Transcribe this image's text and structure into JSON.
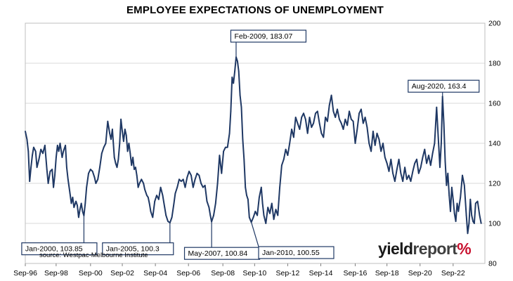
{
  "chart_data": {
    "type": "line",
    "title": "EMPLOYEE EXPECTATIONS OF UNEMPLOYMENT",
    "source": "source: Westpac-Melbourne Institute",
    "series": [
      {
        "name": "",
        "color": "#1f3864",
        "points": [
          [
            1996.67,
            146
          ],
          [
            1996.8,
            142
          ],
          [
            1996.9,
            136
          ],
          [
            1997.0,
            121
          ],
          [
            1997.1,
            128
          ],
          [
            1997.2,
            134
          ],
          [
            1997.3,
            138
          ],
          [
            1997.45,
            136
          ],
          [
            1997.55,
            128
          ],
          [
            1997.7,
            132
          ],
          [
            1997.85,
            137
          ],
          [
            1998.0,
            135
          ],
          [
            1998.15,
            139
          ],
          [
            1998.3,
            127
          ],
          [
            1998.4,
            120
          ],
          [
            1998.55,
            126
          ],
          [
            1998.7,
            127
          ],
          [
            1998.8,
            118
          ],
          [
            1998.9,
            124
          ],
          [
            1999.0,
            133
          ],
          [
            1999.1,
            139
          ],
          [
            1999.2,
            136
          ],
          [
            1999.3,
            140
          ],
          [
            1999.45,
            133
          ],
          [
            1999.55,
            136
          ],
          [
            1999.7,
            139
          ],
          [
            1999.8,
            128
          ],
          [
            1999.9,
            122
          ],
          [
            2000.05,
            115
          ],
          [
            2000.15,
            110
          ],
          [
            2000.25,
            113
          ],
          [
            2000.35,
            108
          ],
          [
            2000.5,
            111
          ],
          [
            2000.6,
            109
          ],
          [
            2000.7,
            103
          ],
          [
            2000.8,
            107
          ],
          [
            2000.9,
            110
          ],
          [
            2001.0,
            106
          ],
          [
            2001.1,
            103.85
          ],
          [
            2001.2,
            110
          ],
          [
            2001.3,
            118
          ],
          [
            2001.45,
            125
          ],
          [
            2001.6,
            127
          ],
          [
            2001.75,
            126
          ],
          [
            2001.9,
            123
          ],
          [
            2002.0,
            120
          ],
          [
            2002.15,
            122
          ],
          [
            2002.3,
            128
          ],
          [
            2002.45,
            135
          ],
          [
            2002.6,
            138
          ],
          [
            2002.75,
            140
          ],
          [
            2002.9,
            151
          ],
          [
            2003.05,
            145
          ],
          [
            2003.15,
            142
          ],
          [
            2003.25,
            147
          ],
          [
            2003.4,
            133
          ],
          [
            2003.5,
            130
          ],
          [
            2003.6,
            128
          ],
          [
            2003.7,
            132
          ],
          [
            2003.8,
            140
          ],
          [
            2003.9,
            152
          ],
          [
            2004.0,
            146
          ],
          [
            2004.1,
            141
          ],
          [
            2004.2,
            147
          ],
          [
            2004.3,
            144
          ],
          [
            2004.4,
            136
          ],
          [
            2004.5,
            140
          ],
          [
            2004.6,
            135
          ],
          [
            2004.7,
            129
          ],
          [
            2004.8,
            133
          ],
          [
            2004.9,
            127
          ],
          [
            2005.0,
            128
          ],
          [
            2005.1,
            124
          ],
          [
            2005.2,
            118
          ],
          [
            2005.3,
            120
          ],
          [
            2005.45,
            122
          ],
          [
            2005.6,
            120
          ],
          [
            2005.7,
            117
          ],
          [
            2005.85,
            114
          ],
          [
            2005.95,
            113
          ],
          [
            2006.05,
            110
          ],
          [
            2006.15,
            106
          ],
          [
            2006.3,
            103
          ],
          [
            2006.45,
            111
          ],
          [
            2006.6,
            114
          ],
          [
            2006.75,
            112
          ],
          [
            2006.9,
            118
          ],
          [
            2007.05,
            114
          ],
          [
            2007.2,
            108
          ],
          [
            2007.3,
            104
          ],
          [
            2007.45,
            101
          ],
          [
            2007.6,
            100.3
          ],
          [
            2007.75,
            103
          ],
          [
            2007.9,
            110
          ],
          [
            2008.0,
            115
          ],
          [
            2008.15,
            118
          ],
          [
            2008.3,
            122
          ],
          [
            2008.45,
            121
          ],
          [
            2008.6,
            122
          ],
          [
            2008.75,
            118
          ],
          [
            2008.9,
            123
          ],
          [
            2009.05,
            126
          ],
          [
            2009.2,
            124
          ],
          [
            2009.35,
            118
          ],
          [
            2009.5,
            122
          ],
          [
            2009.65,
            125
          ],
          [
            2009.8,
            124
          ],
          [
            2009.95,
            120
          ],
          [
            2010.1,
            118
          ],
          [
            2010.25,
            119
          ],
          [
            2010.4,
            111
          ],
          [
            2010.55,
            108
          ],
          [
            2010.65,
            104
          ],
          [
            2010.75,
            100.84
          ],
          [
            2010.9,
            104
          ],
          [
            2011.05,
            110
          ],
          [
            2011.2,
            120
          ],
          [
            2011.35,
            134
          ],
          [
            2011.5,
            125
          ],
          [
            2011.65,
            136
          ],
          [
            2011.8,
            138
          ],
          [
            2011.95,
            138
          ],
          [
            2012.1,
            145
          ],
          [
            2012.2,
            156
          ],
          [
            2012.3,
            173
          ],
          [
            2012.4,
            170
          ],
          [
            2012.5,
            176
          ],
          [
            2012.6,
            183.07
          ],
          [
            2012.7,
            181
          ],
          [
            2012.8,
            176
          ],
          [
            2012.9,
            164
          ],
          [
            2013.0,
            158
          ],
          [
            2013.1,
            142
          ],
          [
            2013.2,
            132
          ],
          [
            2013.3,
            118
          ],
          [
            2013.4,
            114
          ],
          [
            2013.5,
            112
          ],
          [
            2013.6,
            103
          ],
          [
            2013.75,
            100.55
          ],
          [
            2013.9,
            103
          ],
          [
            2014.05,
            106
          ],
          [
            2014.2,
            104
          ],
          [
            2014.35,
            113
          ],
          [
            2014.5,
            118
          ],
          [
            2014.6,
            110
          ],
          [
            2014.7,
            104
          ],
          [
            2014.85,
            100
          ],
          [
            2015.0,
            108
          ],
          [
            2015.15,
            105
          ],
          [
            2015.3,
            110
          ],
          [
            2015.45,
            102
          ],
          [
            2015.6,
            107
          ],
          [
            2015.75,
            104
          ],
          [
            2015.9,
            118
          ],
          [
            2016.05,
            129
          ],
          [
            2016.2,
            132
          ],
          [
            2016.35,
            137
          ],
          [
            2016.5,
            134
          ],
          [
            2016.65,
            140
          ],
          [
            2016.8,
            147
          ],
          [
            2016.95,
            143
          ],
          [
            2017.1,
            153
          ],
          [
            2017.25,
            150
          ],
          [
            2017.4,
            147
          ],
          [
            2017.55,
            153
          ],
          [
            2017.7,
            155
          ],
          [
            2017.85,
            152
          ],
          [
            2018.0,
            145
          ],
          [
            2018.15,
            153
          ],
          [
            2018.3,
            148
          ],
          [
            2018.45,
            150
          ],
          [
            2018.6,
            155
          ],
          [
            2018.75,
            156
          ],
          [
            2018.9,
            150
          ],
          [
            2019.05,
            145
          ],
          [
            2019.2,
            143
          ],
          [
            2019.35,
            153
          ],
          [
            2019.5,
            151
          ],
          [
            2019.65,
            159
          ],
          [
            2019.8,
            164
          ],
          [
            2019.95,
            156
          ],
          [
            2020.1,
            153
          ],
          [
            2020.25,
            157
          ],
          [
            2020.4,
            152
          ],
          [
            2020.55,
            150
          ],
          [
            2020.7,
            147
          ],
          [
            2020.85,
            152
          ],
          [
            2021.0,
            149
          ],
          [
            2021.15,
            156
          ],
          [
            2021.3,
            152
          ],
          [
            2021.45,
            151
          ],
          [
            2021.6,
            140
          ],
          [
            2021.75,
            147
          ],
          [
            2021.9,
            155
          ],
          [
            2022.05,
            157
          ],
          [
            2022.2,
            150
          ],
          [
            2022.35,
            153
          ],
          [
            2022.5,
            148
          ],
          [
            2022.65,
            140
          ],
          [
            2022.8,
            136
          ],
          [
            2022.95,
            146
          ],
          [
            2023.1,
            139
          ],
          [
            2023.25,
            145
          ],
          [
            2023.4,
            142
          ],
          [
            2023.55,
            136
          ],
          [
            2023.7,
            140
          ],
          [
            2023.85,
            133
          ],
          [
            2024.0,
            130
          ],
          [
            2024.15,
            126
          ],
          [
            2024.3,
            132
          ],
          [
            2024.45,
            125
          ],
          [
            2024.6,
            121
          ],
          [
            2024.75,
            127
          ],
          [
            2024.9,
            132
          ],
          [
            2025.05,
            125
          ],
          [
            2025.2,
            121
          ],
          [
            2025.35,
            128
          ],
          [
            2025.5,
            122
          ],
          [
            2025.65,
            124
          ],
          [
            2025.8,
            121
          ],
          [
            2025.95,
            126
          ],
          [
            2026.1,
            130
          ],
          [
            2026.25,
            132
          ],
          [
            2026.4,
            125
          ],
          [
            2026.55,
            128
          ],
          [
            2026.7,
            133
          ],
          [
            2026.85,
            137
          ],
          [
            2027.0,
            130
          ],
          [
            2027.15,
            134
          ],
          [
            2027.3,
            129
          ],
          [
            2027.45,
            135
          ],
          [
            2027.6,
            140
          ],
          [
            2027.75,
            158
          ],
          [
            2027.9,
            140
          ],
          [
            2028.0,
            128
          ],
          [
            2028.1,
            140
          ],
          [
            2028.2,
            163.4
          ],
          [
            2028.3,
            150
          ],
          [
            2028.4,
            131
          ],
          [
            2028.5,
            119
          ],
          [
            2028.6,
            125
          ],
          [
            2028.7,
            114
          ],
          [
            2028.8,
            106
          ],
          [
            2028.9,
            118
          ],
          [
            2029.0,
            112
          ],
          [
            2029.1,
            105
          ],
          [
            2029.2,
            101
          ],
          [
            2029.3,
            110
          ],
          [
            2029.4,
            106
          ],
          [
            2029.55,
            113
          ],
          [
            2029.7,
            124
          ],
          [
            2029.85,
            119
          ],
          [
            2030.0,
            104
          ],
          [
            2030.1,
            95
          ],
          [
            2030.2,
            100
          ],
          [
            2030.3,
            112
          ],
          [
            2030.4,
            104
          ],
          [
            2030.5,
            101
          ],
          [
            2030.6,
            100
          ],
          [
            2030.7,
            110
          ],
          [
            2030.85,
            111
          ],
          [
            2031.0,
            104
          ],
          [
            2031.12,
            100
          ]
        ]
      }
    ],
    "xaxis": {
      "ticks": [
        {
          "v": 1996.67,
          "label": "Sep-96"
        },
        {
          "v": 1999.0,
          "label": "Sep-98"
        },
        {
          "v": 2001.6,
          "label": "Sep-00"
        },
        {
          "v": 2004.0,
          "label": "Sep-02"
        },
        {
          "v": 2006.5,
          "label": "Sep-04"
        },
        {
          "v": 2009.0,
          "label": "Sep-06"
        },
        {
          "v": 2011.6,
          "label": "Sep-08"
        },
        {
          "v": 2014.0,
          "label": "Sep-10"
        },
        {
          "v": 2016.5,
          "label": "Sep-12"
        },
        {
          "v": 2019.0,
          "label": "Sep-14"
        },
        {
          "v": 2021.6,
          "label": "Sep-16"
        },
        {
          "v": 2024.0,
          "label": "Sep-18"
        },
        {
          "v": 2026.5,
          "label": "Sep-20"
        },
        {
          "v": 2029.0,
          "label": "Sep-22"
        }
      ],
      "range": [
        1996.67,
        2031.4
      ]
    },
    "yaxis": {
      "side": "right",
      "range": [
        80,
        200
      ],
      "ticks": [
        80,
        100,
        120,
        140,
        160,
        180,
        200
      ],
      "grid": true
    },
    "annotations": [
      {
        "text": "Feb-2009, 183.07",
        "x": 2012.6,
        "y": 183.07,
        "box": [
          2012.2,
          196.5
        ]
      },
      {
        "text": "Aug-2020, 163.4",
        "x": 2028.2,
        "y": 163.4,
        "box": [
          2025.6,
          171.5
        ]
      },
      {
        "text": "Jan-2000, 103.85",
        "x": 2001.1,
        "y": 103.85,
        "box": [
          1996.4,
          90.3
        ]
      },
      {
        "text": "Jan-2005, 100.3",
        "x": 2007.6,
        "y": 100.3,
        "box": [
          2002.5,
          90.3
        ]
      },
      {
        "text": "May-2007, 100.84",
        "x": 2010.75,
        "y": 100.84,
        "box": [
          2008.7,
          88.0
        ]
      },
      {
        "text": "Jan-2010, 100.55",
        "x": 2013.75,
        "y": 100.55,
        "box": [
          2014.3,
          88.4
        ]
      }
    ]
  },
  "brand": {
    "part1": "yield",
    "part2": "report",
    "part3": "%"
  }
}
